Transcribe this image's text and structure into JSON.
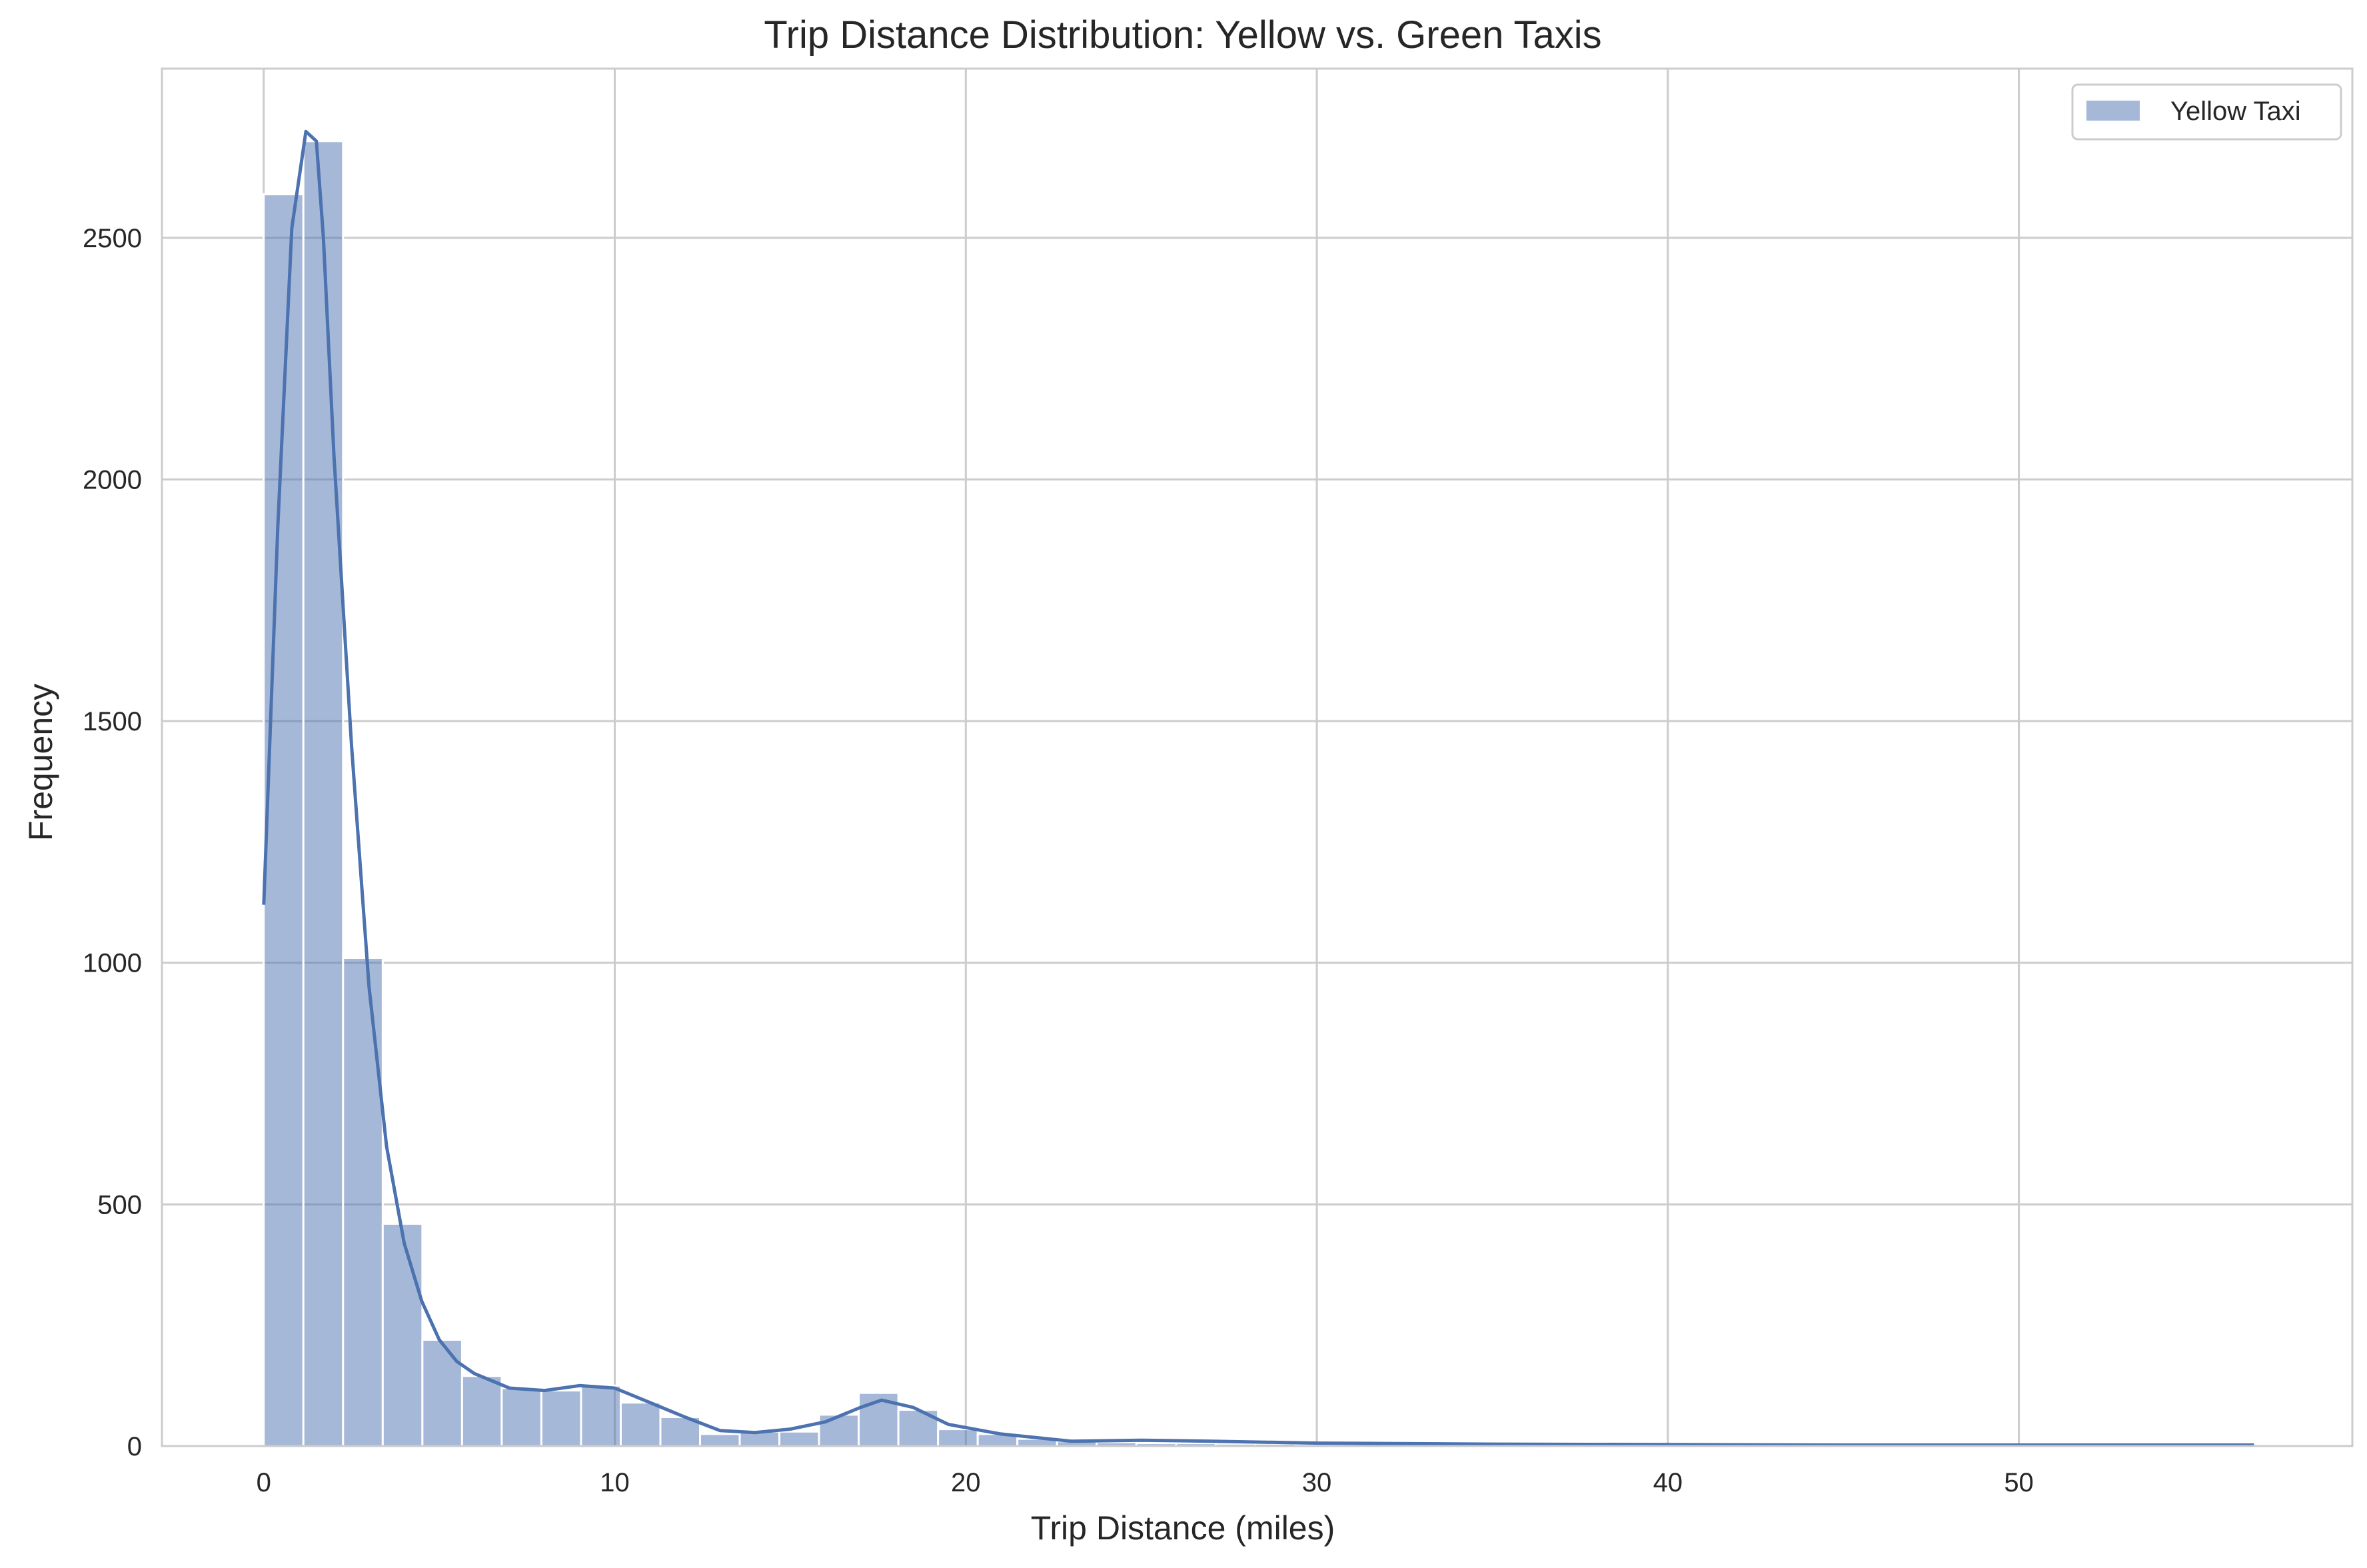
{
  "colors": {
    "bar_fill": "#4c72b0",
    "kde_line": "#4c72b0",
    "grid": "#cccccc",
    "frame": "#cccccc"
  },
  "chart_data": {
    "type": "bar",
    "title": "Trip Distance Distribution: Yellow vs. Green Taxis",
    "xlabel": "Trip Distance (miles)",
    "ylabel": "Frequency",
    "xlim": [
      -2.9,
      59.5
    ],
    "ylim": [
      0,
      2850
    ],
    "xticks": [
      0,
      10,
      20,
      30,
      40,
      50
    ],
    "xtick_labels": [
      "0",
      "10",
      "20",
      "30",
      "40",
      "50"
    ],
    "yticks": [
      0,
      500,
      1000,
      1500,
      2000,
      2500
    ],
    "ytick_labels": [
      "0",
      "500",
      "1000",
      "1500",
      "2000",
      "2500"
    ],
    "grid": true,
    "legend": {
      "position": "top-right",
      "entries": [
        "Yellow Taxi"
      ]
    },
    "bin_width": 1.13,
    "bin_start": 0,
    "series": [
      {
        "name": "Yellow Taxi",
        "kind": "histogram",
        "values": [
          2590,
          2700,
          1010,
          460,
          220,
          145,
          120,
          115,
          125,
          90,
          60,
          25,
          30,
          30,
          65,
          110,
          75,
          35,
          25,
          15,
          10,
          8,
          6,
          6,
          5,
          5,
          4,
          4,
          4,
          4,
          3,
          3,
          3,
          3,
          3,
          3,
          2,
          2,
          2,
          2,
          2,
          2,
          2,
          2,
          2,
          2,
          2,
          2,
          2,
          2
        ]
      },
      {
        "name": "Yellow Taxi KDE",
        "kind": "kde",
        "x": [
          0,
          0.4,
          0.8,
          1.2,
          1.5,
          1.7,
          2.0,
          2.5,
          3.0,
          3.5,
          4.0,
          4.5,
          5.0,
          5.5,
          6.0,
          7.0,
          8.0,
          9.0,
          10.0,
          11.0,
          12.0,
          13.0,
          14.0,
          15.0,
          16.0,
          17.0,
          17.6,
          18.5,
          19.5,
          21.0,
          23.0,
          25.0,
          27.0,
          30.0,
          35.0,
          40.0,
          45.0,
          50.0,
          56.7
        ],
        "y": [
          1120,
          1900,
          2520,
          2720,
          2700,
          2500,
          2050,
          1450,
          950,
          620,
          420,
          300,
          220,
          175,
          150,
          120,
          115,
          125,
          120,
          90,
          60,
          32,
          28,
          35,
          50,
          80,
          95,
          80,
          45,
          25,
          10,
          12,
          10,
          6,
          4,
          3,
          2,
          2,
          2
        ]
      }
    ]
  }
}
